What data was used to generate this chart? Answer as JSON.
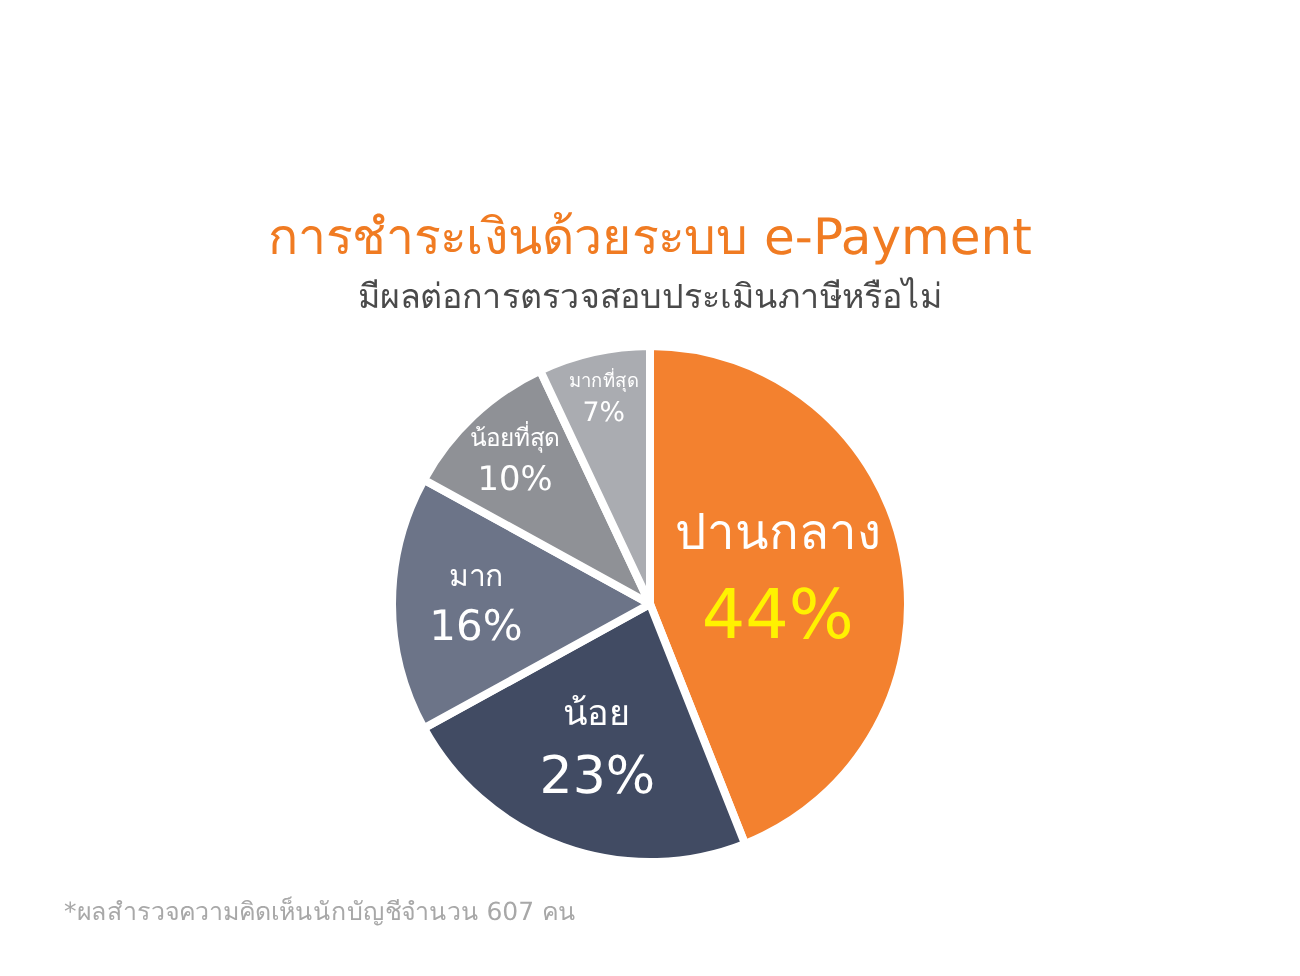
{
  "chart_data": {
    "type": "pie",
    "title": "การชำระเงินด้วยระบบ e-Payment",
    "subtitle": "มีผลต่อการตรวจสอบประเมินภาษีหรือไม่",
    "categories": [
      "ปานกลาง",
      "น้อย",
      "มาก",
      "น้อยที่สุด",
      "มากที่สุด"
    ],
    "values": [
      44,
      23,
      16,
      10,
      7
    ],
    "colors": [
      "#f3812f",
      "#414b63",
      "#6c7488",
      "#8f9196",
      "#aaacb1"
    ],
    "value_labels": [
      "44%",
      "23%",
      "16%",
      "10%",
      "7%"
    ],
    "annotations": [
      "*ผลสำรวจความคิดเห็นนักบัญชีจำนวน 607 คน"
    ]
  }
}
